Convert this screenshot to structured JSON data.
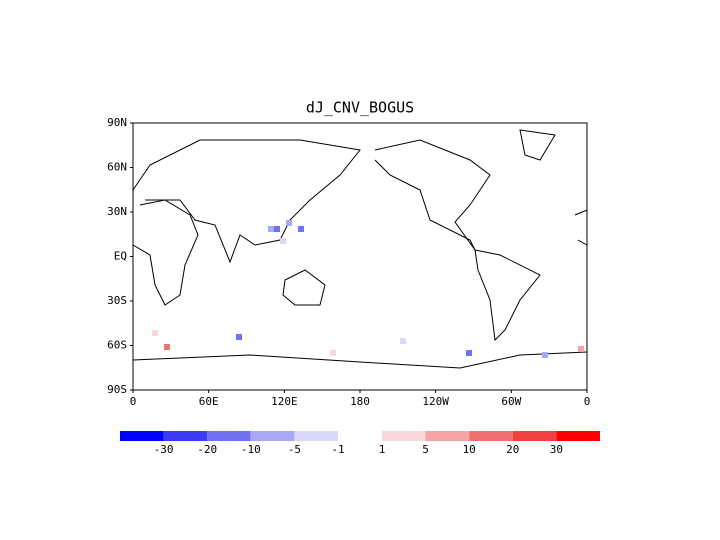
{
  "title": "dJ_CNV_BOGUS",
  "lat_labels": [
    "90N",
    "60N",
    "30N",
    "EQ",
    "30S",
    "60S",
    "90S"
  ],
  "lon_labels": [
    "0",
    "60E",
    "120E",
    "180",
    "120W",
    "60W",
    "0"
  ],
  "colorbar": {
    "colors": [
      "#0000ff",
      "#3c3cf8",
      "#7070f0",
      "#a8a8f4",
      "#d8d8f8",
      "#f8d8d8",
      "#f4a4a4",
      "#ee7070",
      "#f44040",
      "#ff0000"
    ],
    "labels": [
      "-30",
      "-20",
      "-10",
      "-5",
      "-1",
      "1",
      "5",
      "10",
      "20",
      "30"
    ]
  }
}
